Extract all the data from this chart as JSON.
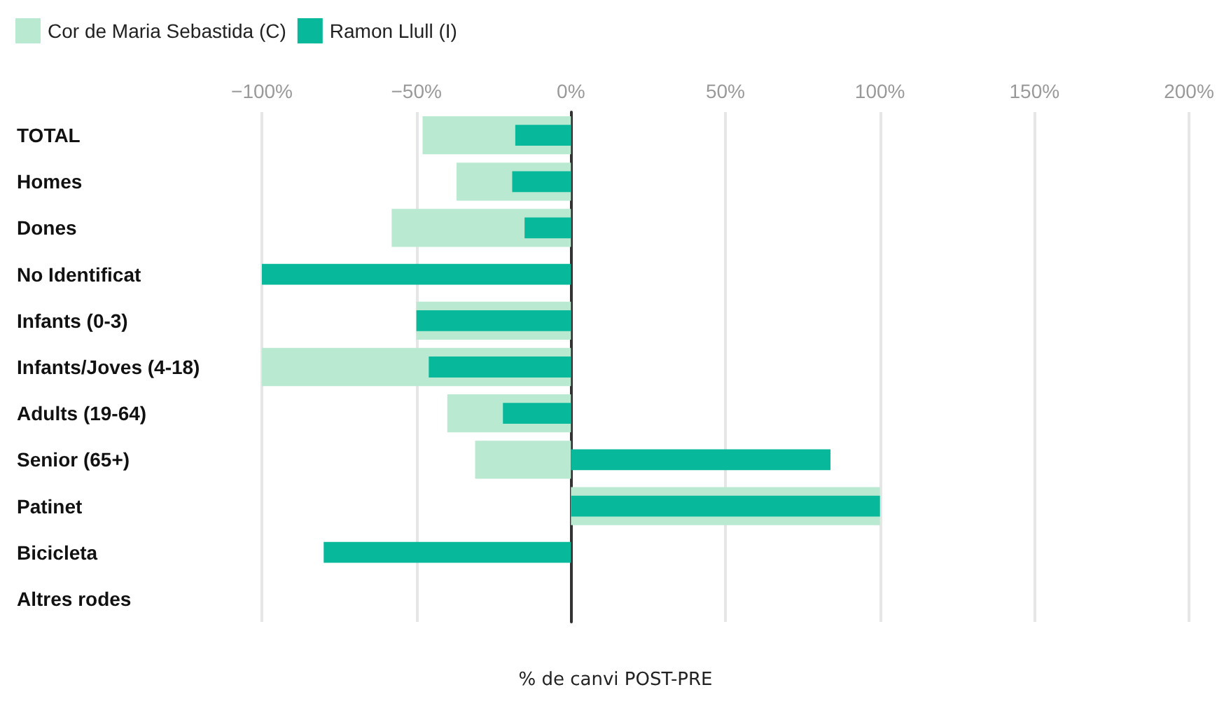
{
  "chart_data": {
    "type": "bar",
    "orientation": "horizontal",
    "xlabel": "% de canvi POST-PRE",
    "categories": [
      "TOTAL",
      "Homes",
      "Dones",
      "No Identificat",
      "Infants (0-3)",
      "Infants/Joves (4-18)",
      "Adults (19-64)",
      "Senior (65+)",
      "Patinet",
      "Bicicleta",
      "Altres rodes"
    ],
    "series": [
      {
        "name": "Cor de Maria Sebastida (C)",
        "color": "#b9e9d0",
        "values": [
          -48,
          -37,
          -58,
          null,
          -50,
          -100,
          -40,
          -31,
          100,
          null,
          null
        ]
      },
      {
        "name": "Ramon Llull (I)",
        "color": "#07b89b",
        "values": [
          -18,
          -19,
          -15,
          -100,
          -50,
          -46,
          -22,
          84,
          100,
          -80,
          null
        ]
      }
    ],
    "xlim": [
      -100,
      200
    ],
    "xticks": [
      {
        "value": -100,
        "label": "−100%"
      },
      {
        "value": -50,
        "label": "−50%"
      },
      {
        "value": 0,
        "label": "0%"
      },
      {
        "value": 50,
        "label": "50%"
      },
      {
        "value": 100,
        "label": "100%"
      },
      {
        "value": 150,
        "label": "150%"
      },
      {
        "value": 200,
        "label": "200%"
      }
    ],
    "grid": "x",
    "legend": "top left"
  }
}
